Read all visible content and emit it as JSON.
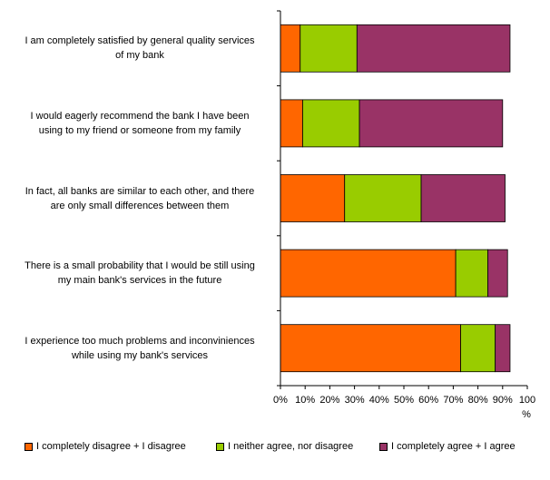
{
  "chart_data": {
    "type": "bar",
    "orientation": "horizontal",
    "stacked": true,
    "categories": [
      "I am completely satisfied by general quality services of my bank",
      "I would eagerly recommend the bank I have been using to my friend or someone from my family",
      "In fact, all banks are similar to each other, and there are only small differences between them",
      "There is a small probability that I would be still using my main bank's services in the future",
      "I experience too much problems and inconviniences while using my bank's services"
    ],
    "category_lines": [
      [
        "I am completely satisfied by general quality services",
        "of my bank"
      ],
      [
        "I would eagerly recommend the bank I have been",
        "using to my friend or someone from my family"
      ],
      [
        "In fact, all banks are similar to each other, and there",
        "are only small differences between them"
      ],
      [
        "There is a small probability that I would be still using",
        "my main bank's services in the future"
      ],
      [
        "I experience too much problems and inconviniences",
        "while using my bank's services"
      ]
    ],
    "series": [
      {
        "name": "I completely disagree + I disagree",
        "color": "#FF6600",
        "values": [
          8,
          9,
          26,
          71,
          73
        ]
      },
      {
        "name": "I neither agree, nor disagree",
        "color": "#99CC00",
        "values": [
          23,
          23,
          31,
          13,
          14
        ]
      },
      {
        "name": "I completely agree + I agree",
        "color": "#993366",
        "values": [
          62,
          58,
          34,
          8,
          6
        ]
      }
    ],
    "xlim": [
      0,
      100
    ],
    "xticks": [
      "0%",
      "10%",
      "20%",
      "30%",
      "40%",
      "50%",
      "60%",
      "70%",
      "80%",
      "90%",
      "100"
    ],
    "xlabel": "%",
    "grid": false,
    "legend_position": "bottom"
  }
}
